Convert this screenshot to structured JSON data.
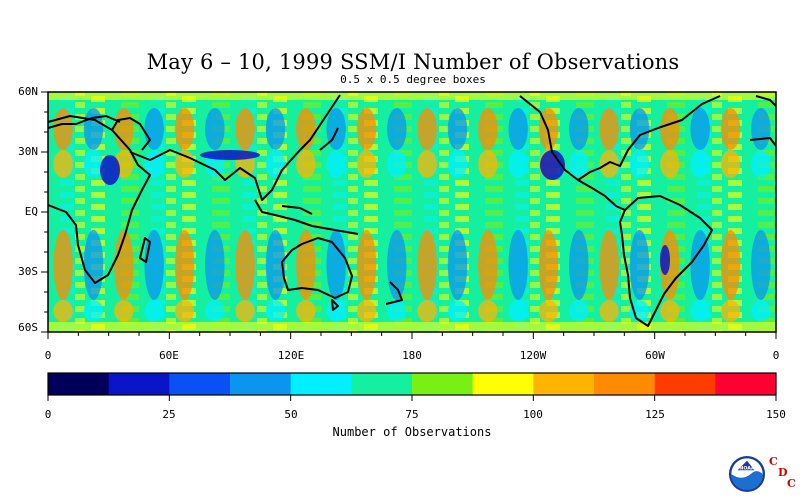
{
  "figure": {
    "title": "May 6 – 10, 1999 SSM/I Number of Observations",
    "subtitle": "0.5 x 0.5 degree boxes"
  },
  "map": {
    "lat_labels": [
      "60N",
      "30N",
      "EQ",
      "30S",
      "60S"
    ],
    "lon_labels": [
      "0",
      "60E",
      "120E",
      "180",
      "120W",
      "60W",
      "0"
    ],
    "lat_range": [
      -60,
      60
    ],
    "lon_range": [
      0,
      360
    ]
  },
  "colorbar": {
    "title": "Number of Observations",
    "tick_labels": [
      "0",
      "25",
      "50",
      "75",
      "100",
      "125",
      "150"
    ],
    "range": [
      0,
      150
    ],
    "colors": [
      "#00005a",
      "#0a14c8",
      "#0a50f5",
      "#0a96f0",
      "#00f0ff",
      "#14f0a0",
      "#78f014",
      "#ffff00",
      "#ffb400",
      "#ff8c00",
      "#ff3c00",
      "#ff0032"
    ]
  },
  "logo": {
    "name": "noaa-logo",
    "text": "NOAA",
    "cdc_letters": [
      "C",
      "D",
      "C"
    ],
    "cdc_color": "#d40000"
  }
}
